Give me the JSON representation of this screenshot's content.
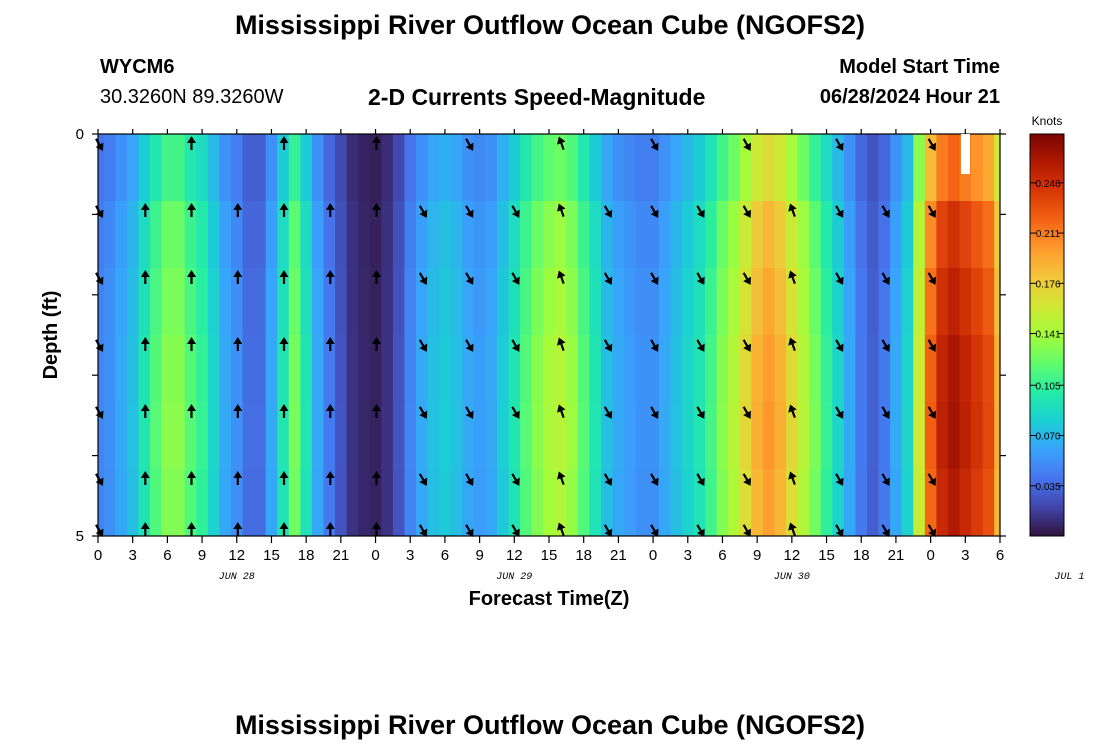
{
  "header": {
    "title": "Mississippi River Outflow Ocean Cube (NGOFS2)",
    "station_id": "WYCM6",
    "coordinates": "30.3260N  89.3260W",
    "subtitle": "2-D Currents Speed-Magnitude",
    "start_label": "Model Start Time",
    "start_time": "06/28/2024 Hour 21"
  },
  "footer": {
    "title": "Mississippi River Outflow Ocean Cube (NGOFS2)"
  },
  "chart_data": {
    "type": "heatmap",
    "title": "2-D Currents Speed-Magnitude",
    "xlabel": "Forecast Time(Z)",
    "ylabel": "Depth (ft)",
    "x_tick_labels": [
      "0",
      "3",
      "6",
      "9",
      "12",
      "15",
      "18",
      "21",
      "0",
      "3",
      "6",
      "9",
      "12",
      "15",
      "18",
      "21",
      "0",
      "3",
      "6",
      "9",
      "12",
      "15",
      "18",
      "21",
      "0",
      "3",
      "6"
    ],
    "day_labels": [
      {
        "label": "JUN 28",
        "hour": 12
      },
      {
        "label": "JUN 29",
        "hour": 36
      },
      {
        "label": "JUN 30",
        "hour": 60
      },
      {
        "label": "JUL 1",
        "hour": 84
      }
    ],
    "x_range_hours": [
      0,
      78
    ],
    "depth_range_ft": [
      0,
      5
    ],
    "y_tick_labels": [
      "0",
      "5"
    ],
    "depth_levels": 6,
    "colorbar": {
      "unit": "Knots",
      "ticks": [
        "0.035",
        "0.070",
        "0.105",
        "0.141",
        "0.176",
        "0.211",
        "0.246"
      ],
      "tick_values": [
        0.035,
        0.07,
        0.105,
        0.141,
        0.176,
        0.211,
        0.246
      ],
      "range": [
        0,
        0.28
      ],
      "colormap": [
        "#30123b",
        "#4145ab",
        "#4675ed",
        "#39a2fc",
        "#1bcfd4",
        "#24eca6",
        "#61fc6c",
        "#a4fc3b",
        "#d1e834",
        "#f3c63a",
        "#fe9b2d",
        "#f36315",
        "#d93806",
        "#b11901",
        "#7a0402"
      ]
    },
    "speed_profile": {
      "hours": [
        0,
        1,
        2,
        3,
        4,
        5,
        6,
        7,
        8,
        9,
        10,
        11,
        12,
        13,
        14,
        15,
        16,
        17,
        18,
        19,
        20,
        21,
        22,
        23,
        24,
        25,
        26,
        27,
        28,
        29,
        30,
        31,
        32,
        33,
        34,
        35,
        36,
        37,
        38,
        39,
        40,
        41,
        42,
        43,
        44,
        45,
        46,
        47,
        48,
        49,
        50,
        51,
        52,
        53,
        54,
        55,
        56,
        57,
        58,
        59,
        60,
        61,
        62,
        63,
        64,
        65,
        66,
        67,
        68,
        69,
        70,
        71,
        72,
        73,
        74,
        75,
        76,
        77,
        78
      ],
      "values": [
        0.045,
        0.05,
        0.06,
        0.07,
        0.09,
        0.11,
        0.125,
        0.125,
        0.11,
        0.1,
        0.08,
        0.06,
        0.05,
        0.035,
        0.035,
        0.06,
        0.09,
        0.12,
        0.09,
        0.06,
        0.04,
        0.025,
        0.012,
        0.008,
        0.006,
        0.012,
        0.025,
        0.045,
        0.06,
        0.07,
        0.075,
        0.07,
        0.06,
        0.055,
        0.06,
        0.075,
        0.09,
        0.11,
        0.125,
        0.135,
        0.14,
        0.13,
        0.11,
        0.09,
        0.07,
        0.06,
        0.055,
        0.05,
        0.05,
        0.06,
        0.07,
        0.08,
        0.09,
        0.105,
        0.125,
        0.14,
        0.16,
        0.18,
        0.19,
        0.18,
        0.16,
        0.14,
        0.12,
        0.1,
        0.08,
        0.06,
        0.04,
        0.03,
        0.04,
        0.06,
        0.08,
        0.15,
        0.21,
        0.24,
        0.25,
        0.24,
        0.23,
        0.22,
        0.18
      ]
    },
    "depth_factors": [
      0.88,
      0.98,
      1.02,
      1.05,
      1.06,
      1.04
    ],
    "arrows": {
      "hours": [
        0,
        4,
        8,
        12,
        16,
        20,
        24,
        28,
        32,
        36,
        40,
        44,
        48,
        52,
        56,
        60,
        64,
        68,
        72
      ],
      "directions": [
        "down-right",
        "up",
        "up",
        "up",
        "up",
        "up",
        "up",
        "down-right",
        "down-right",
        "down-right",
        "up-left",
        "down-right",
        "down-right",
        "down-right",
        "down-right",
        "up-left",
        "down-right",
        "down-right",
        "down-right"
      ]
    }
  }
}
